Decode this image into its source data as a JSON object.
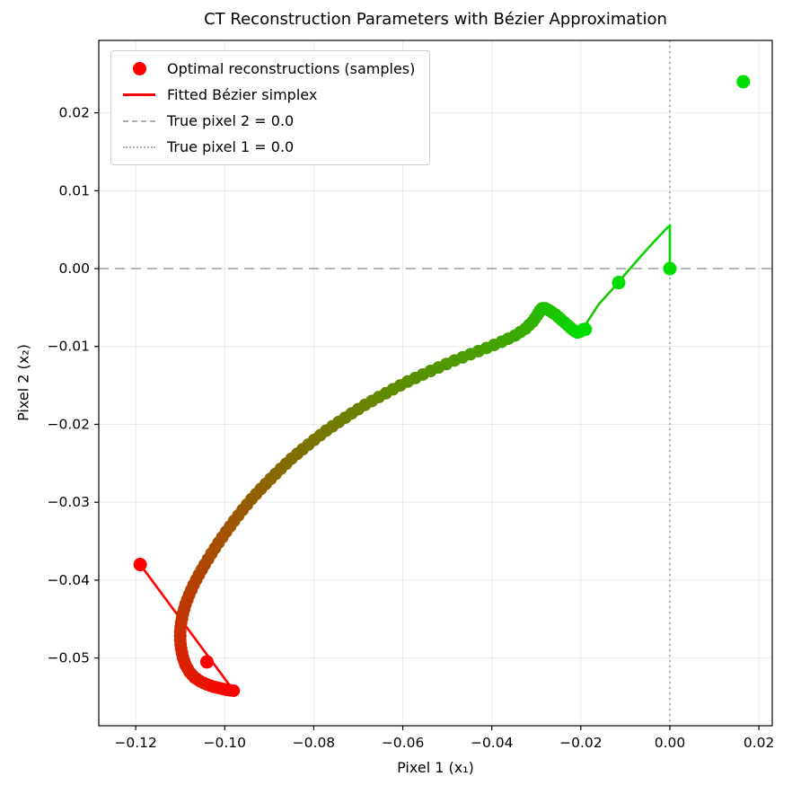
{
  "chart_data": {
    "type": "scatter",
    "title": "CT Reconstruction Parameters with Bézier Approximation",
    "xlabel": "Pixel 1 (x₁)",
    "ylabel": "Pixel 2 (x₂)",
    "xlim": [
      -0.1283,
      0.023
    ],
    "ylim": [
      -0.0587,
      0.0293
    ],
    "grid": true,
    "x_ticks": {
      "values": [
        -0.12,
        -0.1,
        -0.08,
        -0.06,
        -0.04,
        -0.02,
        0.0,
        0.02
      ],
      "labels": [
        "−0.12",
        "−0.10",
        "−0.08",
        "−0.06",
        "−0.04",
        "−0.02",
        "0.00",
        "0.02"
      ]
    },
    "y_ticks": {
      "values": [
        0.02,
        0.01,
        0.0,
        -0.01,
        -0.02,
        -0.03,
        -0.04,
        -0.05
      ],
      "labels": [
        "0.02",
        "0.01",
        "0.00",
        "−0.01",
        "−0.02",
        "−0.03",
        "−0.04",
        "−0.05"
      ]
    },
    "colors": {
      "start": "#ff0000",
      "end": "#00dd00",
      "reference": "#b3b3b3",
      "grid": "rgba(0,0,0,0.08)",
      "spine": "#000000"
    },
    "reference_lines": {
      "horizontal": {
        "y": 0.0,
        "style": "dashed",
        "label": "True pixel 2 = 0.0"
      },
      "vertical": {
        "x": 0.0,
        "style": "dotted",
        "label": "True pixel 1 = 0.0"
      }
    },
    "trajectory_points": [
      [
        -0.098,
        -0.0542
      ],
      [
        -0.0995,
        -0.0541
      ],
      [
        -0.101,
        -0.0539
      ],
      [
        -0.1025,
        -0.0537
      ],
      [
        -0.104,
        -0.0534
      ],
      [
        -0.1055,
        -0.053
      ],
      [
        -0.1068,
        -0.0525
      ],
      [
        -0.1079,
        -0.0518
      ],
      [
        -0.1088,
        -0.0509
      ],
      [
        -0.1094,
        -0.0499
      ],
      [
        -0.1098,
        -0.0488
      ],
      [
        -0.11,
        -0.0477
      ],
      [
        -0.11,
        -0.0466
      ],
      [
        -0.1098,
        -0.0455
      ],
      [
        -0.1094,
        -0.0443
      ],
      [
        -0.1088,
        -0.0431
      ],
      [
        -0.108,
        -0.0419
      ],
      [
        -0.107,
        -0.0406
      ],
      [
        -0.1058,
        -0.0393
      ],
      [
        -0.1045,
        -0.038
      ],
      [
        -0.103,
        -0.0366
      ],
      [
        -0.1014,
        -0.0352
      ],
      [
        -0.0997,
        -0.0338
      ],
      [
        -0.0979,
        -0.0324
      ],
      [
        -0.096,
        -0.031
      ],
      [
        -0.094,
        -0.0296
      ],
      [
        -0.0919,
        -0.0283
      ],
      [
        -0.0897,
        -0.027
      ],
      [
        -0.0874,
        -0.0257
      ],
      [
        -0.085,
        -0.0244
      ],
      [
        -0.0825,
        -0.0232
      ],
      [
        -0.0799,
        -0.022
      ],
      [
        -0.0772,
        -0.0208
      ],
      [
        -0.0744,
        -0.0197
      ],
      [
        -0.0715,
        -0.0186
      ],
      [
        -0.0685,
        -0.0175
      ],
      [
        -0.0654,
        -0.0165
      ],
      [
        -0.0622,
        -0.0155
      ],
      [
        -0.0589,
        -0.0145
      ],
      [
        -0.0555,
        -0.0136
      ],
      [
        -0.052,
        -0.0127
      ],
      [
        -0.0484,
        -0.0118
      ],
      [
        -0.0448,
        -0.011
      ],
      [
        -0.0412,
        -0.0102
      ],
      [
        -0.0378,
        -0.0094
      ],
      [
        -0.0348,
        -0.0086
      ],
      [
        -0.0324,
        -0.0077
      ],
      [
        -0.0308,
        -0.0068
      ],
      [
        -0.0298,
        -0.006
      ],
      [
        -0.0292,
        -0.0054
      ],
      [
        -0.0287,
        -0.0051
      ],
      [
        -0.028,
        -0.0051
      ],
      [
        -0.027,
        -0.0054
      ],
      [
        -0.0257,
        -0.0059
      ],
      [
        -0.0243,
        -0.0066
      ],
      [
        -0.0229,
        -0.0073
      ],
      [
        -0.0217,
        -0.0079
      ],
      [
        -0.0208,
        -0.0082
      ],
      [
        -0.0202,
        -0.0081
      ],
      [
        -0.0195,
        -0.0078
      ]
    ],
    "extra_red_points": [
      [
        -0.119,
        -0.038
      ],
      [
        -0.104,
        -0.0505
      ]
    ],
    "extra_green_points": [
      [
        -0.019,
        -0.0078
      ],
      [
        -0.0115,
        -0.0018
      ],
      [
        0.0,
        0.0
      ],
      [
        0.0165,
        0.024
      ]
    ],
    "bezier_line": [
      [
        -0.119,
        -0.038
      ],
      [
        -0.098,
        -0.0542
      ],
      [
        -0.0995,
        -0.0541
      ],
      [
        -0.101,
        -0.0539
      ],
      [
        -0.1025,
        -0.0537
      ],
      [
        -0.104,
        -0.0534
      ],
      [
        -0.1055,
        -0.053
      ],
      [
        -0.1068,
        -0.0525
      ],
      [
        -0.1079,
        -0.0518
      ],
      [
        -0.1088,
        -0.0509
      ],
      [
        -0.1094,
        -0.0499
      ],
      [
        -0.1098,
        -0.0488
      ],
      [
        -0.11,
        -0.0477
      ],
      [
        -0.11,
        -0.0466
      ],
      [
        -0.1098,
        -0.0455
      ],
      [
        -0.1094,
        -0.0443
      ],
      [
        -0.1088,
        -0.0431
      ],
      [
        -0.108,
        -0.0419
      ],
      [
        -0.107,
        -0.0406
      ],
      [
        -0.1058,
        -0.0393
      ],
      [
        -0.1045,
        -0.038
      ],
      [
        -0.103,
        -0.0366
      ],
      [
        -0.1014,
        -0.0352
      ],
      [
        -0.0997,
        -0.0338
      ],
      [
        -0.0979,
        -0.0324
      ],
      [
        -0.096,
        -0.031
      ],
      [
        -0.094,
        -0.0296
      ],
      [
        -0.0919,
        -0.0283
      ],
      [
        -0.0897,
        -0.027
      ],
      [
        -0.0874,
        -0.0257
      ],
      [
        -0.085,
        -0.0244
      ],
      [
        -0.0825,
        -0.0232
      ],
      [
        -0.0799,
        -0.022
      ],
      [
        -0.0772,
        -0.0208
      ],
      [
        -0.0744,
        -0.0197
      ],
      [
        -0.0715,
        -0.0186
      ],
      [
        -0.0685,
        -0.0175
      ],
      [
        -0.0654,
        -0.0165
      ],
      [
        -0.0622,
        -0.0155
      ],
      [
        -0.0589,
        -0.0145
      ],
      [
        -0.0555,
        -0.0136
      ],
      [
        -0.052,
        -0.0127
      ],
      [
        -0.0484,
        -0.0118
      ],
      [
        -0.0448,
        -0.011
      ],
      [
        -0.0412,
        -0.0102
      ],
      [
        -0.0378,
        -0.0094
      ],
      [
        -0.0348,
        -0.0086
      ],
      [
        -0.0324,
        -0.0077
      ],
      [
        -0.0308,
        -0.0068
      ],
      [
        -0.0298,
        -0.006
      ],
      [
        -0.0292,
        -0.0054
      ],
      [
        -0.0287,
        -0.0051
      ],
      [
        -0.028,
        -0.0051
      ],
      [
        -0.027,
        -0.0054
      ],
      [
        -0.0257,
        -0.0059
      ],
      [
        -0.0243,
        -0.0066
      ],
      [
        -0.0229,
        -0.0073
      ],
      [
        -0.0217,
        -0.0079
      ],
      [
        -0.0208,
        -0.0082
      ],
      [
        -0.0202,
        -0.0081
      ],
      [
        -0.0195,
        -0.0078
      ],
      [
        -0.0185,
        -0.0068
      ],
      [
        -0.016,
        -0.0046
      ],
      [
        -0.013,
        -0.0027
      ],
      [
        -0.01,
        -0.0007
      ],
      [
        -0.0065,
        0.0016
      ],
      [
        -0.003,
        0.0038
      ],
      [
        -0.0005,
        0.0053
      ],
      [
        0.0,
        0.0055
      ],
      [
        0.0,
        0.0001
      ]
    ],
    "legend": {
      "position": "upper left",
      "items": [
        {
          "marker": "dot",
          "color": "#ff0000",
          "label": "Optimal reconstructions (samples)"
        },
        {
          "marker": "line",
          "color": "#ff0000",
          "label": "Fitted Bézier simplex"
        },
        {
          "marker": "dashed-line",
          "color": "#aaaaaa",
          "label": "True pixel 2 = 0.0"
        },
        {
          "marker": "dotted-line",
          "color": "#aaaaaa",
          "label": "True pixel 1 = 0.0"
        }
      ]
    }
  }
}
